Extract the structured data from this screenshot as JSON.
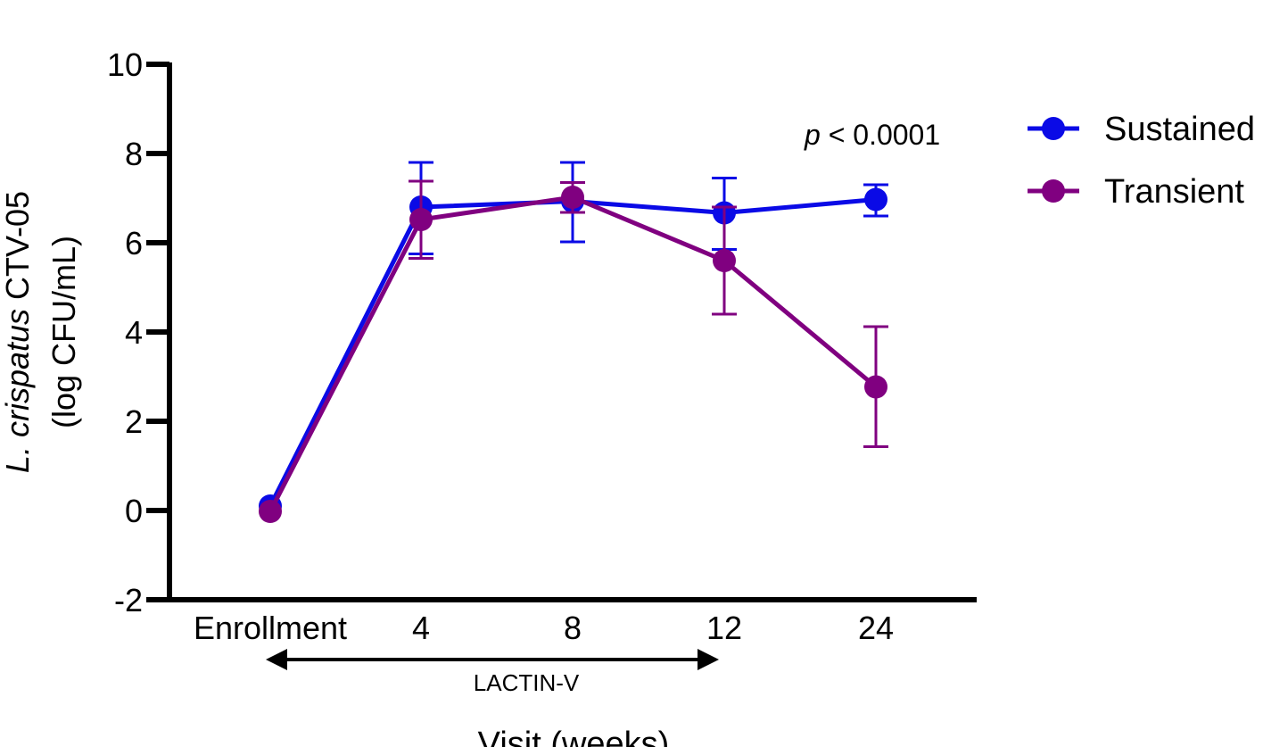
{
  "chart_data": {
    "type": "line",
    "categories": [
      "Enrollment",
      "4",
      "8",
      "12",
      "24"
    ],
    "ylabel_italic": "L. crispatus",
    "ylabel_rest": " CTV-05",
    "ylabel_line2": "(log CFU/mL)",
    "xlabel": "Visit (weeks)",
    "ylim": [
      -2,
      10
    ],
    "yticks": [
      -2,
      0,
      2,
      4,
      6,
      8,
      10
    ],
    "grid": false,
    "legend_position": "right",
    "annotation": {
      "italic": "p",
      "rest": " < 0.0001"
    },
    "bracket_label": "LACTIN-V",
    "series": [
      {
        "name": "Sustained",
        "color": "#0a0ae6",
        "values": [
          0.1,
          6.8,
          6.93,
          6.67,
          6.97
        ],
        "err_upper": [
          null,
          7.8,
          7.8,
          7.45,
          7.3
        ],
        "err_lower": [
          null,
          5.75,
          6.02,
          5.85,
          6.6
        ]
      },
      {
        "name": "Transient",
        "color": "#800080",
        "values": [
          -0.02,
          6.52,
          7.02,
          5.6,
          2.77
        ],
        "err_upper": [
          null,
          7.38,
          7.35,
          6.8,
          4.12
        ],
        "err_lower": [
          null,
          5.65,
          6.68,
          4.4,
          1.43
        ]
      }
    ]
  }
}
